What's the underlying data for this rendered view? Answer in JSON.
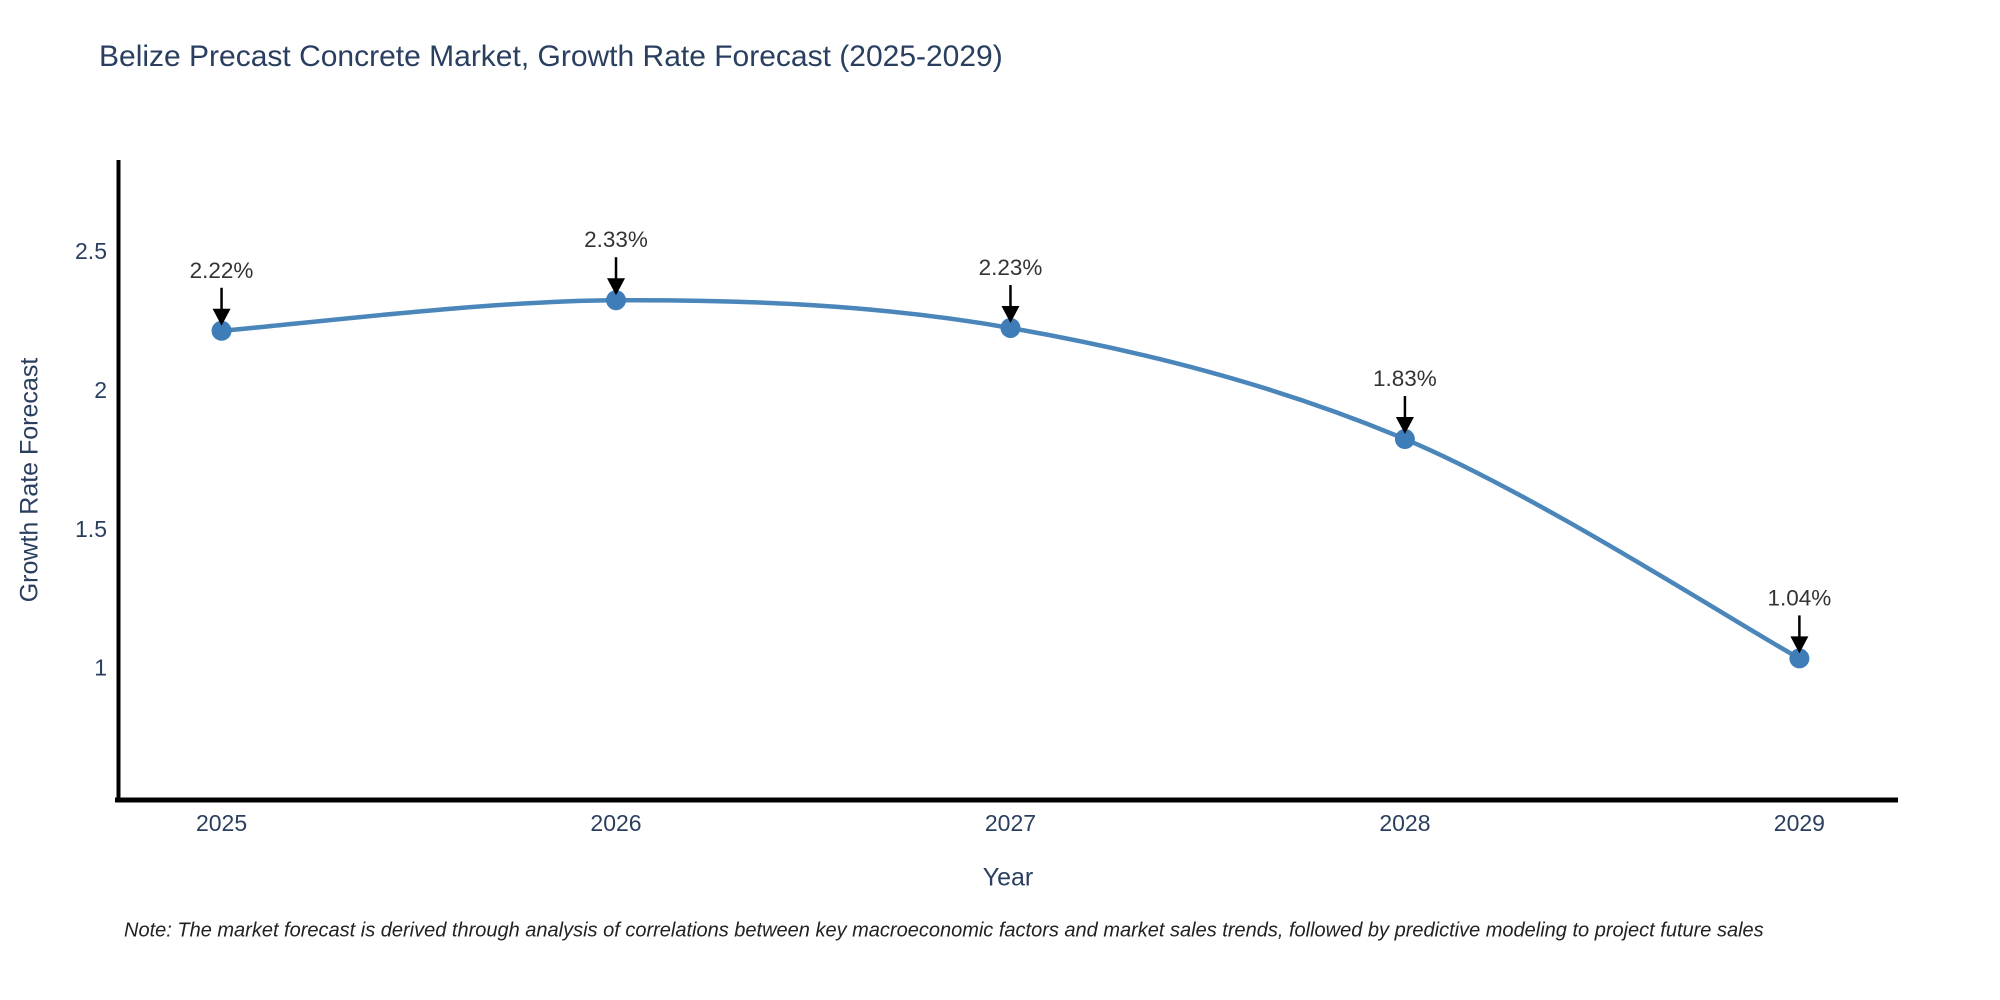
{
  "page": {
    "note": "Note: The market forecast is derived through analysis of correlations between key macroeconomic factors and market sales trends, followed by predictive modeling to project future sales"
  },
  "chart_data": {
    "type": "line",
    "title": "Belize Precast Concrete Market, Growth Rate Forecast (2025-2029)",
    "xlabel": "Year",
    "ylabel": "Growth Rate Forecast",
    "x": [
      2025,
      2026,
      2027,
      2028,
      2029
    ],
    "y": [
      2.22,
      2.33,
      2.23,
      1.83,
      1.04
    ],
    "point_labels": [
      "2.22%",
      "2.33%",
      "2.23%",
      "1.83%",
      "1.04%"
    ],
    "x_ticks": [
      "2025",
      "2026",
      "2027",
      "2028",
      "2029"
    ],
    "y_ticks": [
      1,
      1.5,
      2,
      2.5
    ],
    "y_tick_labels": [
      "1",
      "1.5",
      "2",
      "2.5"
    ],
    "xlim": [
      2024.74,
      2029.25
    ],
    "ylim": [
      0.53,
      2.835
    ],
    "line_shape": "spline",
    "grid": false,
    "legend": "none",
    "annotation_style": "label-above-with-down-arrow",
    "colors": {
      "line": "#4a86ba",
      "marker": "#3f7db8",
      "axis": "#000000",
      "tick_text": "#2a3f5f",
      "title_text": "#2a3f5f",
      "annotation_text": "#333333",
      "arrow": "#000000",
      "background": "#ffffff"
    }
  }
}
